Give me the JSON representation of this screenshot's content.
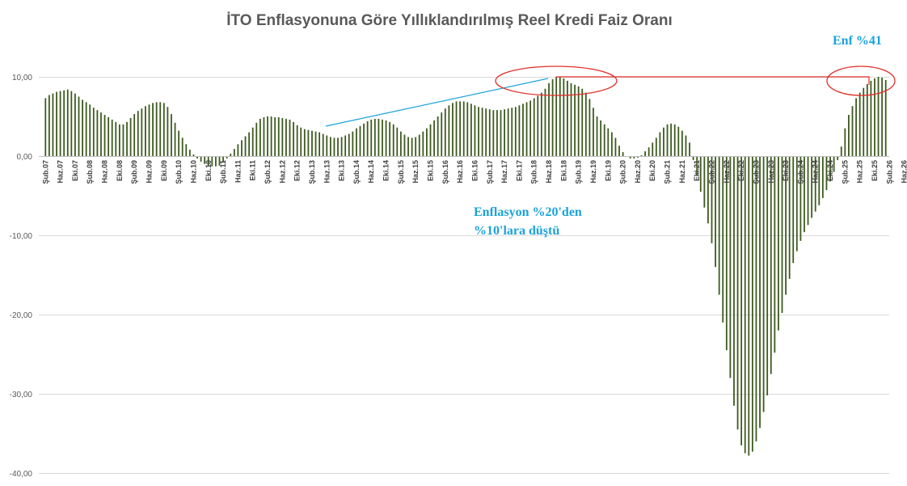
{
  "colors": {
    "bars": "#3d5a1e",
    "gridline": "#d9d9d9",
    "axis": "#bfbfbf",
    "annotation_text": "#1aa3dc",
    "trend_line": "#1aa3dc",
    "highlight": "#e0302a"
  },
  "chart_data": {
    "type": "bar",
    "title": "İTO Enflasyonuna Göre Yıllıklandırılmış Reel Kredi Faiz Oranı",
    "xlabel": "",
    "ylabel": "",
    "ylim": [
      -40,
      12
    ],
    "y_ticks": [
      10,
      0,
      -10,
      -20,
      -30,
      -40
    ],
    "y_tick_labels": [
      "10,00",
      "0,00",
      "-10,00",
      "-20,00",
      "-30,00",
      "-40,00"
    ],
    "grid": "horizontal",
    "legend": "none",
    "x_tick_labels": [
      "Şub.07",
      "Haz.07",
      "Eki.07",
      "Şub.08",
      "Haz.08",
      "Eki.08",
      "Şub.09",
      "Haz.09",
      "Eki.09",
      "Şub.10",
      "Haz.10",
      "Eki.10",
      "Şub.11",
      "Haz.11",
      "Eki.11",
      "Şub.12",
      "Haz.12",
      "Eki.12",
      "Şub.13",
      "Haz.13",
      "Eki.13",
      "Şub.14",
      "Haz.14",
      "Eki.14",
      "Şub.15",
      "Haz.15",
      "Eki.15",
      "Şub.16",
      "Haz.16",
      "Eki.16",
      "Şub.17",
      "Haz.17",
      "Eki.17",
      "Şub.18",
      "Haz.18",
      "Eki.18",
      "Şub.19",
      "Haz.19",
      "Eki.19",
      "Şub.20",
      "Haz.20",
      "Eki.20",
      "Şub.21",
      "Haz.21",
      "Eki.21",
      "Şub.22",
      "Haz.22",
      "Eki.22",
      "Şub.23",
      "Haz.23",
      "Eki.23",
      "Şub.24",
      "Haz.24",
      "Eki.24",
      "Şub.25",
      "Haz.25",
      "Eki.25",
      "Şub.26",
      "Haz.26"
    ],
    "months_per_tick": 4,
    "series": [
      {
        "values": [
          7.3,
          7.7,
          7.9,
          8.1,
          8.2,
          8.3,
          8.4,
          8.2,
          7.9,
          7.5,
          7.1,
          6.8,
          6.5,
          6.1,
          5.8,
          5.5,
          5.2,
          4.9,
          4.6,
          4.3,
          4.0,
          4.0,
          4.3,
          4.8,
          5.3,
          5.7,
          6.0,
          6.3,
          6.5,
          6.7,
          6.8,
          6.8,
          6.7,
          6.2,
          5.3,
          4.2,
          3.2,
          2.3,
          1.5,
          0.8,
          0.2,
          -0.3,
          -0.7,
          -1.0,
          -1.2,
          -1.3,
          -1.3,
          -1.2,
          -0.8,
          -0.3,
          0.3,
          0.9,
          1.5,
          2.0,
          2.5,
          3.0,
          3.6,
          4.2,
          4.7,
          4.9,
          5.0,
          5.0,
          4.9,
          4.9,
          4.8,
          4.7,
          4.6,
          4.3,
          3.9,
          3.6,
          3.4,
          3.3,
          3.2,
          3.1,
          3.0,
          2.8,
          2.6,
          2.4,
          2.3,
          2.3,
          2.4,
          2.6,
          2.8,
          3.1,
          3.5,
          3.8,
          4.1,
          4.4,
          4.6,
          4.7,
          4.7,
          4.6,
          4.5,
          4.3,
          4.0,
          3.6,
          3.1,
          2.7,
          2.4,
          2.3,
          2.4,
          2.7,
          3.1,
          3.5,
          4.0,
          4.5,
          5.0,
          5.5,
          6.0,
          6.4,
          6.7,
          6.9,
          6.9,
          6.9,
          6.8,
          6.6,
          6.4,
          6.2,
          6.1,
          6.0,
          5.9,
          5.8,
          5.8,
          5.8,
          5.9,
          6.0,
          6.1,
          6.2,
          6.4,
          6.6,
          6.8,
          7.0,
          7.3,
          7.6,
          8.0,
          8.5,
          9.2,
          9.7,
          10.0,
          10.0,
          9.8,
          9.5,
          9.2,
          9.0,
          8.8,
          8.5,
          8.0,
          7.2,
          6.1,
          5.0,
          4.5,
          4.0,
          3.5,
          3.0,
          2.3,
          1.3,
          0.5,
          -0.1,
          -0.3,
          -0.3,
          -0.2,
          0.1,
          0.6,
          1.1,
          1.7,
          2.3,
          3.0,
          3.6,
          4.0,
          4.1,
          4.0,
          3.7,
          3.2,
          2.6,
          1.7,
          -0.5,
          -2.5,
          -4.5,
          -6.5,
          -8.5,
          -11.0,
          -14.0,
          -17.5,
          -21.0,
          -24.5,
          -28.0,
          -31.5,
          -34.5,
          -36.5,
          -37.5,
          -37.8,
          -37.3,
          -36.0,
          -34.3,
          -32.3,
          -30.2,
          -27.5,
          -24.8,
          -22.0,
          -19.8,
          -17.5,
          -15.5,
          -13.5,
          -12.0,
          -10.7,
          -9.6,
          -8.7,
          -7.8,
          -7.0,
          -6.2,
          -5.3,
          -4.3,
          -3.2,
          -2.0,
          -0.5,
          1.2,
          3.5,
          5.2,
          6.3,
          7.3,
          8.0,
          8.6,
          9.1,
          9.5,
          9.8,
          10.0,
          9.9,
          9.6
        ]
      }
    ],
    "annotations": [
      {
        "text_lines": [
          "Enflasyon %20'den",
          "%10'lara düştü"
        ]
      },
      {
        "text_lines": [
          "Enf %41"
        ]
      }
    ]
  }
}
